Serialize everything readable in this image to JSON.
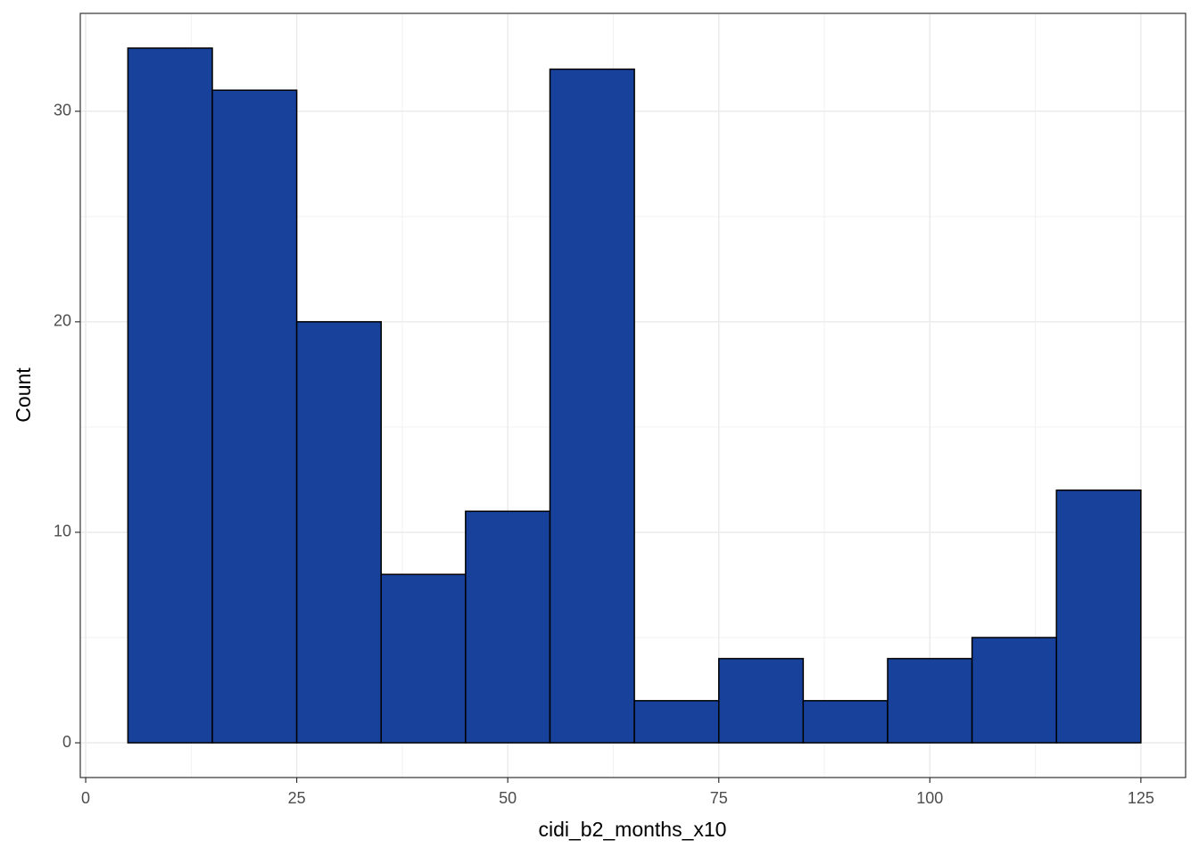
{
  "chart_data": {
    "type": "histogram",
    "x_label": "cidi_b2_months_x10",
    "y_label": "Count",
    "bins": [
      5,
      15,
      25,
      35,
      45,
      55,
      65,
      75,
      85,
      95,
      105,
      115,
      125
    ],
    "values": [
      33,
      31,
      20,
      8,
      11,
      32,
      2,
      4,
      2,
      4,
      5,
      12
    ],
    "color": "#17419a",
    "edge_color": "#000000",
    "xlim": [
      -0.64,
      130.3
    ],
    "xticks": [
      0,
      25,
      50,
      75,
      100,
      125
    ],
    "xminor": [
      12.5,
      37.5,
      62.5,
      87.5,
      112.5
    ],
    "ylim": [
      -1.65,
      34.65
    ],
    "yticks": [
      0,
      10,
      20,
      30
    ],
    "yminor": [
      5,
      15,
      25
    ],
    "grid": true
  }
}
